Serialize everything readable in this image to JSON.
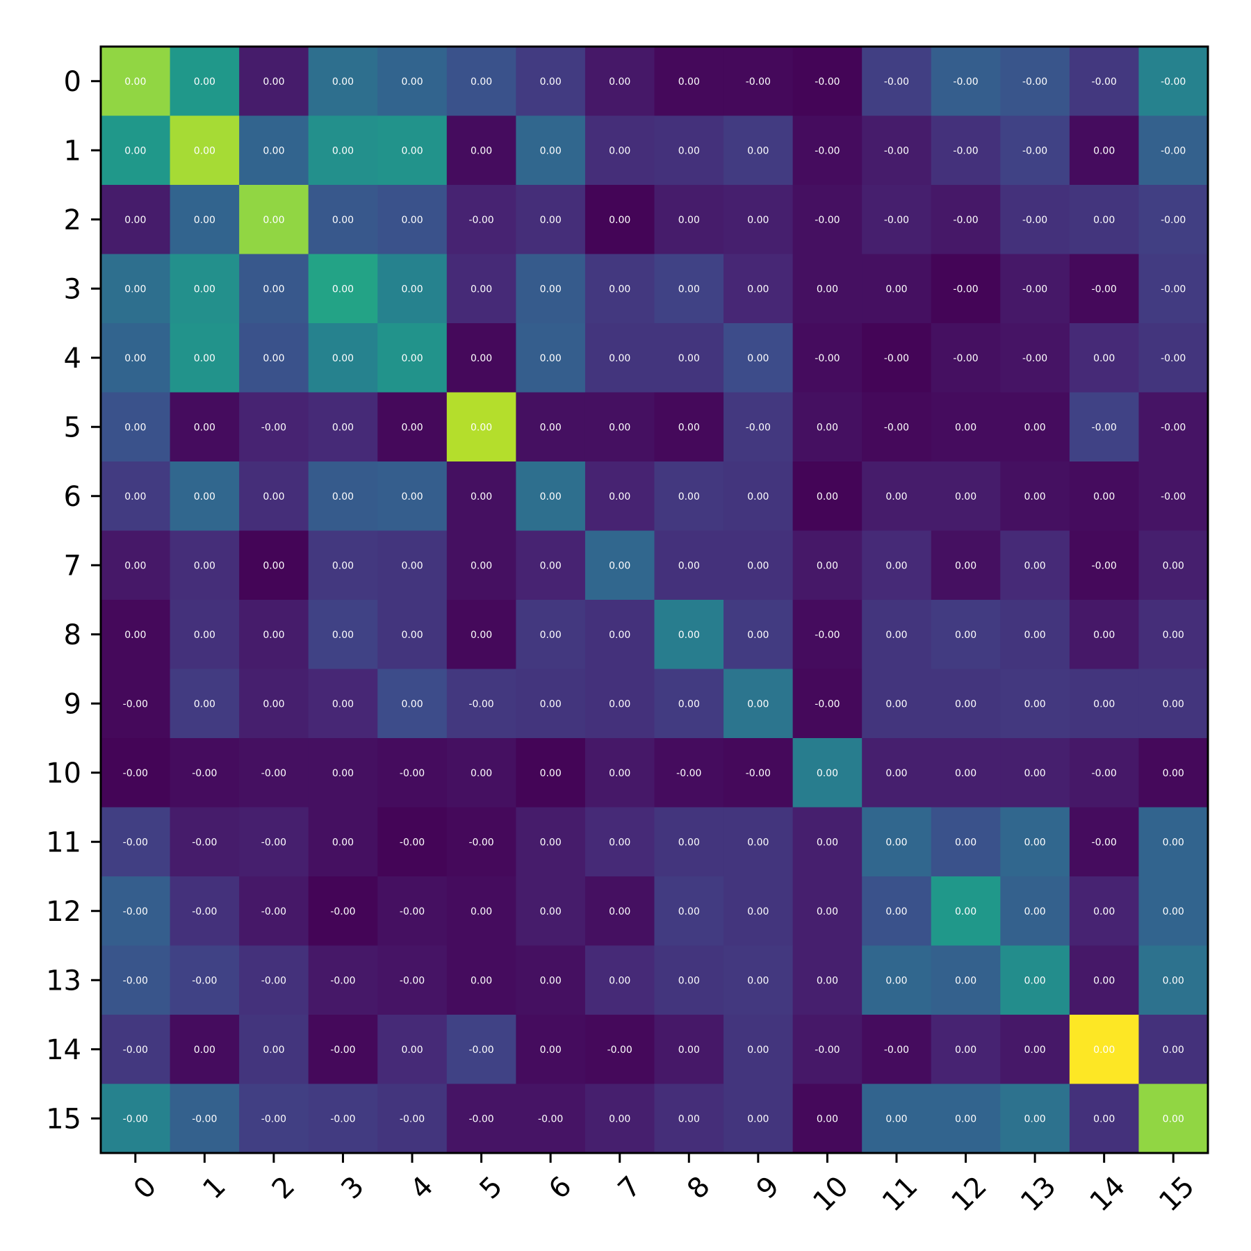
{
  "chart_data": {
    "type": "heatmap",
    "colormap": "viridis",
    "x_ticks": [
      "0",
      "1",
      "2",
      "3",
      "4",
      "5",
      "6",
      "7",
      "8",
      "9",
      "10",
      "11",
      "12",
      "13",
      "14",
      "15"
    ],
    "y_ticks": [
      "0",
      "1",
      "2",
      "3",
      "4",
      "5",
      "6",
      "7",
      "8",
      "9",
      "10",
      "11",
      "12",
      "13",
      "14",
      "15"
    ],
    "x_tick_rotation_deg": 45,
    "values": [
      [
        0.75,
        0.48,
        0.07,
        0.33,
        0.29,
        0.23,
        0.16,
        0.06,
        0.02,
        0.02,
        0.01,
        0.17,
        0.27,
        0.24,
        0.15,
        0.4
      ],
      [
        0.48,
        0.78,
        0.29,
        0.45,
        0.46,
        0.03,
        0.3,
        0.12,
        0.13,
        0.16,
        0.03,
        0.07,
        0.13,
        0.18,
        0.03,
        0.28
      ],
      [
        0.07,
        0.29,
        0.75,
        0.25,
        0.23,
        0.09,
        0.12,
        0.01,
        0.07,
        0.08,
        0.04,
        0.08,
        0.06,
        0.13,
        0.14,
        0.17
      ],
      [
        0.33,
        0.45,
        0.25,
        0.52,
        0.4,
        0.11,
        0.26,
        0.15,
        0.18,
        0.1,
        0.04,
        0.04,
        0.01,
        0.06,
        0.02,
        0.16
      ],
      [
        0.29,
        0.46,
        0.23,
        0.4,
        0.46,
        0.02,
        0.27,
        0.14,
        0.14,
        0.21,
        0.03,
        0.01,
        0.04,
        0.05,
        0.11,
        0.14
      ],
      [
        0.23,
        0.03,
        0.09,
        0.11,
        0.02,
        0.8,
        0.04,
        0.04,
        0.02,
        0.15,
        0.04,
        0.02,
        0.03,
        0.03,
        0.18,
        0.05
      ],
      [
        0.16,
        0.3,
        0.12,
        0.26,
        0.27,
        0.04,
        0.33,
        0.09,
        0.15,
        0.14,
        0.01,
        0.07,
        0.07,
        0.04,
        0.03,
        0.05
      ],
      [
        0.06,
        0.12,
        0.01,
        0.15,
        0.14,
        0.04,
        0.09,
        0.3,
        0.13,
        0.13,
        0.06,
        0.11,
        0.04,
        0.11,
        0.02,
        0.08
      ],
      [
        0.02,
        0.13,
        0.07,
        0.18,
        0.14,
        0.02,
        0.15,
        0.13,
        0.38,
        0.16,
        0.03,
        0.14,
        0.16,
        0.14,
        0.06,
        0.12
      ],
      [
        0.02,
        0.16,
        0.08,
        0.1,
        0.21,
        0.15,
        0.14,
        0.13,
        0.16,
        0.35,
        0.02,
        0.14,
        0.14,
        0.15,
        0.14,
        0.14
      ],
      [
        0.01,
        0.03,
        0.04,
        0.04,
        0.03,
        0.04,
        0.01,
        0.06,
        0.03,
        0.02,
        0.38,
        0.08,
        0.08,
        0.08,
        0.06,
        0.02
      ],
      [
        0.17,
        0.07,
        0.08,
        0.04,
        0.01,
        0.02,
        0.07,
        0.11,
        0.14,
        0.14,
        0.08,
        0.3,
        0.23,
        0.3,
        0.03,
        0.29
      ],
      [
        0.27,
        0.13,
        0.06,
        0.01,
        0.04,
        0.03,
        0.07,
        0.04,
        0.16,
        0.14,
        0.08,
        0.23,
        0.48,
        0.28,
        0.09,
        0.29
      ],
      [
        0.24,
        0.18,
        0.13,
        0.06,
        0.05,
        0.03,
        0.04,
        0.11,
        0.14,
        0.15,
        0.08,
        0.3,
        0.28,
        0.44,
        0.06,
        0.34
      ],
      [
        0.15,
        0.03,
        0.14,
        0.02,
        0.11,
        0.18,
        0.03,
        0.02,
        0.06,
        0.14,
        0.06,
        0.03,
        0.09,
        0.06,
        1.0,
        0.13
      ],
      [
        0.4,
        0.28,
        0.17,
        0.16,
        0.14,
        0.05,
        0.05,
        0.08,
        0.12,
        0.14,
        0.02,
        0.29,
        0.29,
        0.34,
        0.13,
        0.75
      ]
    ],
    "labels": [
      [
        "0.00",
        "0.00",
        "0.00",
        "0.00",
        "0.00",
        "0.00",
        "0.00",
        "0.00",
        "0.00",
        "-0.00",
        "-0.00",
        "-0.00",
        "-0.00",
        "-0.00",
        "-0.00",
        "-0.00"
      ],
      [
        "0.00",
        "0.00",
        "0.00",
        "0.00",
        "0.00",
        "0.00",
        "0.00",
        "0.00",
        "0.00",
        "0.00",
        "-0.00",
        "-0.00",
        "-0.00",
        "-0.00",
        "0.00",
        "-0.00"
      ],
      [
        "0.00",
        "0.00",
        "0.00",
        "0.00",
        "0.00",
        "-0.00",
        "0.00",
        "0.00",
        "0.00",
        "0.00",
        "-0.00",
        "-0.00",
        "-0.00",
        "-0.00",
        "0.00",
        "-0.00"
      ],
      [
        "0.00",
        "0.00",
        "0.00",
        "0.00",
        "0.00",
        "0.00",
        "0.00",
        "0.00",
        "0.00",
        "0.00",
        "0.00",
        "0.00",
        "-0.00",
        "-0.00",
        "-0.00",
        "-0.00"
      ],
      [
        "0.00",
        "0.00",
        "0.00",
        "0.00",
        "0.00",
        "0.00",
        "0.00",
        "0.00",
        "0.00",
        "0.00",
        "-0.00",
        "-0.00",
        "-0.00",
        "-0.00",
        "0.00",
        "-0.00"
      ],
      [
        "0.00",
        "0.00",
        "-0.00",
        "0.00",
        "0.00",
        "0.00",
        "0.00",
        "0.00",
        "0.00",
        "-0.00",
        "0.00",
        "-0.00",
        "0.00",
        "0.00",
        "-0.00",
        "-0.00"
      ],
      [
        "0.00",
        "0.00",
        "0.00",
        "0.00",
        "0.00",
        "0.00",
        "0.00",
        "0.00",
        "0.00",
        "0.00",
        "0.00",
        "0.00",
        "0.00",
        "0.00",
        "0.00",
        "-0.00"
      ],
      [
        "0.00",
        "0.00",
        "0.00",
        "0.00",
        "0.00",
        "0.00",
        "0.00",
        "0.00",
        "0.00",
        "0.00",
        "0.00",
        "0.00",
        "0.00",
        "0.00",
        "-0.00",
        "0.00"
      ],
      [
        "0.00",
        "0.00",
        "0.00",
        "0.00",
        "0.00",
        "0.00",
        "0.00",
        "0.00",
        "0.00",
        "0.00",
        "-0.00",
        "0.00",
        "0.00",
        "0.00",
        "0.00",
        "0.00"
      ],
      [
        "-0.00",
        "0.00",
        "0.00",
        "0.00",
        "0.00",
        "-0.00",
        "0.00",
        "0.00",
        "0.00",
        "0.00",
        "-0.00",
        "0.00",
        "0.00",
        "0.00",
        "0.00",
        "0.00"
      ],
      [
        "-0.00",
        "-0.00",
        "-0.00",
        "0.00",
        "-0.00",
        "0.00",
        "0.00",
        "0.00",
        "-0.00",
        "-0.00",
        "0.00",
        "0.00",
        "0.00",
        "0.00",
        "-0.00",
        "0.00"
      ],
      [
        "-0.00",
        "-0.00",
        "-0.00",
        "0.00",
        "-0.00",
        "-0.00",
        "0.00",
        "0.00",
        "0.00",
        "0.00",
        "0.00",
        "0.00",
        "0.00",
        "0.00",
        "-0.00",
        "0.00"
      ],
      [
        "-0.00",
        "-0.00",
        "-0.00",
        "-0.00",
        "-0.00",
        "0.00",
        "0.00",
        "0.00",
        "0.00",
        "0.00",
        "0.00",
        "0.00",
        "0.00",
        "0.00",
        "0.00",
        "0.00"
      ],
      [
        "-0.00",
        "-0.00",
        "-0.00",
        "-0.00",
        "-0.00",
        "0.00",
        "0.00",
        "0.00",
        "0.00",
        "0.00",
        "0.00",
        "0.00",
        "0.00",
        "0.00",
        "0.00",
        "0.00"
      ],
      [
        "-0.00",
        "0.00",
        "0.00",
        "-0.00",
        "0.00",
        "-0.00",
        "0.00",
        "-0.00",
        "0.00",
        "0.00",
        "-0.00",
        "-0.00",
        "0.00",
        "0.00",
        "0.00",
        "0.00"
      ],
      [
        "-0.00",
        "-0.00",
        "-0.00",
        "-0.00",
        "-0.00",
        "-0.00",
        "-0.00",
        "0.00",
        "0.00",
        "0.00",
        "0.00",
        "0.00",
        "0.00",
        "0.00",
        "0.00",
        "0.00"
      ]
    ]
  }
}
